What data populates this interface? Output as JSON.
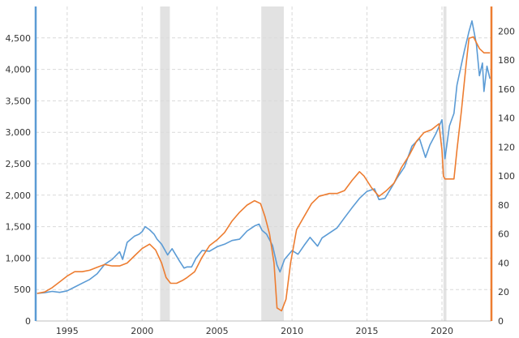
{
  "chart_data": {
    "type": "line",
    "title": "",
    "xlabel": "",
    "ylabel": "",
    "xlim": [
      1992.9,
      2023.3
    ],
    "grid": true,
    "x_ticks": [
      1995,
      2000,
      2005,
      2010,
      2015,
      2020
    ],
    "x_tick_labels": [
      "1995",
      "2000",
      "2005",
      "2010",
      "2015",
      "2020"
    ],
    "left_axis": {
      "ylim": [
        0,
        5000
      ],
      "ticks": [
        0,
        500,
        1000,
        1500,
        2000,
        2500,
        3000,
        3500,
        4000,
        4500
      ],
      "tick_labels": [
        "0",
        "500",
        "1,000",
        "1,500",
        "2,000",
        "2,500",
        "3,000",
        "3,500",
        "4,000",
        "4,500"
      ],
      "color": "#5b9bd5"
    },
    "right_axis": {
      "ylim": [
        0,
        217
      ],
      "ticks": [
        0,
        20,
        40,
        60,
        80,
        100,
        120,
        140,
        160,
        180,
        200
      ],
      "tick_labels": [
        "0",
        "20",
        "40",
        "60",
        "80",
        "100",
        "120",
        "140",
        "160",
        "180",
        "200"
      ],
      "color": "#ed7d31"
    },
    "recessions": [
      [
        2001.2,
        2001.85
      ],
      [
        2007.95,
        2009.45
      ],
      [
        2020.1,
        2020.3
      ]
    ],
    "series": [
      {
        "axis": "left",
        "color": "#5b9bd5",
        "points": [
          [
            1993.0,
            440
          ],
          [
            1993.5,
            450
          ],
          [
            1994.0,
            470
          ],
          [
            1994.5,
            455
          ],
          [
            1995.0,
            480
          ],
          [
            1995.5,
            540
          ],
          [
            1996.0,
            600
          ],
          [
            1996.5,
            660
          ],
          [
            1997.0,
            750
          ],
          [
            1997.5,
            900
          ],
          [
            1998.0,
            980
          ],
          [
            1998.5,
            1100
          ],
          [
            1998.7,
            980
          ],
          [
            1999.0,
            1250
          ],
          [
            1999.5,
            1350
          ],
          [
            1999.8,
            1380
          ],
          [
            2000.0,
            1420
          ],
          [
            2000.2,
            1500
          ],
          [
            2000.5,
            1450
          ],
          [
            2000.8,
            1380
          ],
          [
            2001.0,
            1300
          ],
          [
            2001.3,
            1220
          ],
          [
            2001.7,
            1050
          ],
          [
            2002.0,
            1150
          ],
          [
            2002.5,
            950
          ],
          [
            2002.8,
            840
          ],
          [
            2003.0,
            860
          ],
          [
            2003.3,
            860
          ],
          [
            2003.6,
            1000
          ],
          [
            2004.0,
            1120
          ],
          [
            2004.5,
            1110
          ],
          [
            2005.0,
            1180
          ],
          [
            2005.5,
            1220
          ],
          [
            2006.0,
            1280
          ],
          [
            2006.5,
            1300
          ],
          [
            2007.0,
            1430
          ],
          [
            2007.5,
            1510
          ],
          [
            2007.8,
            1540
          ],
          [
            2008.0,
            1440
          ],
          [
            2008.3,
            1380
          ],
          [
            2008.7,
            1200
          ],
          [
            2009.0,
            890
          ],
          [
            2009.2,
            780
          ],
          [
            2009.5,
            980
          ],
          [
            2010.0,
            1120
          ],
          [
            2010.4,
            1060
          ],
          [
            2010.8,
            1200
          ],
          [
            2011.2,
            1330
          ],
          [
            2011.7,
            1190
          ],
          [
            2012.0,
            1320
          ],
          [
            2012.5,
            1400
          ],
          [
            2013.0,
            1480
          ],
          [
            2013.5,
            1640
          ],
          [
            2014.0,
            1800
          ],
          [
            2014.5,
            1950
          ],
          [
            2015.0,
            2060
          ],
          [
            2015.5,
            2100
          ],
          [
            2015.8,
            1930
          ],
          [
            2016.2,
            1950
          ],
          [
            2016.7,
            2150
          ],
          [
            2017.0,
            2270
          ],
          [
            2017.5,
            2450
          ],
          [
            2018.0,
            2780
          ],
          [
            2018.5,
            2900
          ],
          [
            2018.9,
            2600
          ],
          [
            2019.2,
            2800
          ],
          [
            2019.6,
            2980
          ],
          [
            2020.0,
            3200
          ],
          [
            2020.2,
            2580
          ],
          [
            2020.5,
            3100
          ],
          [
            2020.8,
            3300
          ],
          [
            2021.0,
            3750
          ],
          [
            2021.5,
            4300
          ],
          [
            2021.8,
            4600
          ],
          [
            2022.0,
            4770
          ],
          [
            2022.3,
            4400
          ],
          [
            2022.5,
            3900
          ],
          [
            2022.7,
            4100
          ],
          [
            2022.8,
            3650
          ],
          [
            2023.0,
            4050
          ],
          [
            2023.2,
            3850
          ]
        ]
      },
      {
        "axis": "right",
        "color": "#ed7d31",
        "points": [
          [
            1993.0,
            19
          ],
          [
            1993.5,
            20
          ],
          [
            1994.0,
            23
          ],
          [
            1994.5,
            27
          ],
          [
            1995.0,
            31
          ],
          [
            1995.5,
            34
          ],
          [
            1996.0,
            34
          ],
          [
            1996.5,
            35
          ],
          [
            1997.0,
            37
          ],
          [
            1997.5,
            39
          ],
          [
            1998.0,
            38
          ],
          [
            1998.5,
            38
          ],
          [
            1999.0,
            40
          ],
          [
            1999.5,
            45
          ],
          [
            2000.0,
            50
          ],
          [
            2000.5,
            53
          ],
          [
            2000.9,
            49
          ],
          [
            2001.3,
            40
          ],
          [
            2001.6,
            30
          ],
          [
            2001.9,
            26
          ],
          [
            2002.3,
            26
          ],
          [
            2002.7,
            28
          ],
          [
            2003.0,
            30
          ],
          [
            2003.5,
            34
          ],
          [
            2004.0,
            44
          ],
          [
            2004.5,
            52
          ],
          [
            2005.0,
            56
          ],
          [
            2005.5,
            61
          ],
          [
            2006.0,
            69
          ],
          [
            2006.5,
            75
          ],
          [
            2007.0,
            80
          ],
          [
            2007.5,
            83
          ],
          [
            2007.9,
            81
          ],
          [
            2008.2,
            72
          ],
          [
            2008.5,
            60
          ],
          [
            2008.8,
            40
          ],
          [
            2009.0,
            9
          ],
          [
            2009.3,
            7
          ],
          [
            2009.6,
            15
          ],
          [
            2009.9,
            40
          ],
          [
            2010.3,
            63
          ],
          [
            2010.8,
            72
          ],
          [
            2011.3,
            81
          ],
          [
            2011.8,
            86
          ],
          [
            2012.5,
            88
          ],
          [
            2013.0,
            88
          ],
          [
            2013.5,
            90
          ],
          [
            2014.0,
            97
          ],
          [
            2014.5,
            103
          ],
          [
            2014.8,
            100
          ],
          [
            2015.3,
            92
          ],
          [
            2015.8,
            86
          ],
          [
            2016.3,
            90
          ],
          [
            2016.8,
            95
          ],
          [
            2017.3,
            106
          ],
          [
            2017.8,
            114
          ],
          [
            2018.3,
            124
          ],
          [
            2018.8,
            130
          ],
          [
            2019.3,
            132
          ],
          [
            2019.8,
            136
          ],
          [
            2020.0,
            118
          ],
          [
            2020.1,
            100
          ],
          [
            2020.2,
            98
          ],
          [
            2020.5,
            98
          ],
          [
            2020.8,
            98
          ],
          [
            2021.0,
            118
          ],
          [
            2021.3,
            145
          ],
          [
            2021.6,
            176
          ],
          [
            2021.8,
            195
          ],
          [
            2022.1,
            196
          ],
          [
            2022.5,
            188
          ],
          [
            2022.8,
            185
          ],
          [
            2023.2,
            185
          ]
        ]
      }
    ]
  }
}
